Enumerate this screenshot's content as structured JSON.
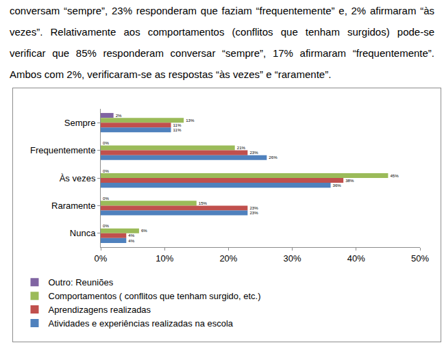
{
  "text": "conversam “sempre”, 23% responderam que faziam “frequentemente” e, 2% afirmaram “às vezes”. Relativamente aos comportamentos (conflitos que tenham surgidos) pode-se verificar que 85% responderam conversar “sempre”, 17% afirmaram “frequentemente”. Ambos com 2%, verificaram-se as respostas “às vezes” e “raramente”.",
  "chart_data": {
    "type": "bar",
    "orientation": "horizontal",
    "categories": [
      "Sempre",
      "Frequentemente",
      "Às vezes",
      "Raramente",
      "Nunca"
    ],
    "series": [
      {
        "name": "Outro: Reuniões",
        "color": "#8064A2",
        "values": [
          2,
          0,
          0,
          0,
          0
        ],
        "value_labels": [
          "2%",
          "0%",
          "0%",
          "0%",
          "0%"
        ]
      },
      {
        "name": "Comportamentos ( conflitos que tenham surgido, etc.)",
        "color": "#9BBB59",
        "values": [
          13,
          21,
          45,
          15,
          6
        ],
        "value_labels": [
          "13%",
          "21%",
          "45%",
          "15%",
          "6%"
        ]
      },
      {
        "name": "Aprendizagens realizadas",
        "color": "#C0504D",
        "values": [
          11,
          23,
          38,
          23,
          4
        ],
        "value_labels": [
          "11%",
          "23%",
          "38%",
          "23%",
          "4%"
        ]
      },
      {
        "name": "Atividades e experiências realizadas na escola",
        "color": "#4F81BD",
        "values": [
          11,
          26,
          36,
          23,
          4
        ],
        "value_labels": [
          "11%",
          "26%",
          "36%",
          "23%",
          "4%"
        ]
      }
    ],
    "xlim": [
      0,
      50
    ],
    "xticks": [
      {
        "value": 0,
        "label": "0%"
      },
      {
        "value": 10,
        "label": "10%"
      },
      {
        "value": 20,
        "label": "20%"
      },
      {
        "value": 30,
        "label": "30%"
      },
      {
        "value": 40,
        "label": "40%"
      },
      {
        "value": 50,
        "label": "50%"
      }
    ],
    "grid": false,
    "legend": "bottom",
    "data_labels": true
  }
}
